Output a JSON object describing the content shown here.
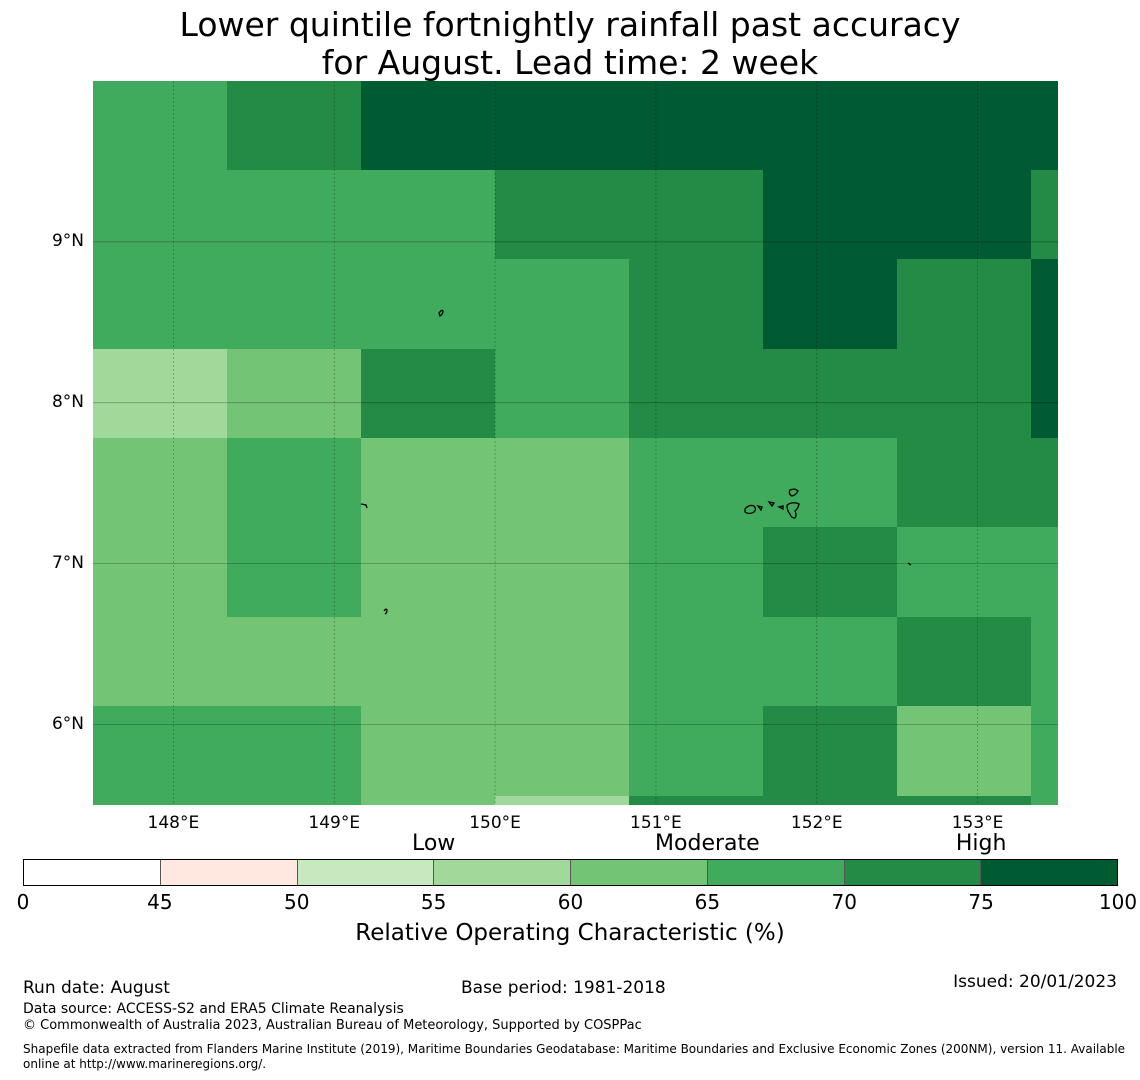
{
  "title": {
    "line1": "Lower quintile fortnightly rainfall past accuracy",
    "line2": "for August. Lead time: 2 week"
  },
  "map": {
    "x_ticks": [
      {
        "lon": 148,
        "label": "148°E"
      },
      {
        "lon": 149,
        "label": "149°E"
      },
      {
        "lon": 150,
        "label": "150°E"
      },
      {
        "lon": 151,
        "label": "151°E"
      },
      {
        "lon": 152,
        "label": "152°E"
      },
      {
        "lon": 153,
        "label": "153°E"
      }
    ],
    "y_ticks": [
      {
        "lat": 9,
        "label": "9°N"
      },
      {
        "lat": 8,
        "label": "8°N"
      },
      {
        "lat": 7,
        "label": "7°N"
      },
      {
        "lat": 6,
        "label": "6°N"
      }
    ],
    "lon_range": [
      147.5,
      153.5
    ],
    "lat_range": [
      5.5,
      10.0
    ],
    "grid": true,
    "value_colors": {
      "60": "#a1d99b",
      "65": "#74c476",
      "70": "#41ab5d",
      "75": "#238b45",
      "100": "#005a32"
    },
    "grid_value_class": [
      [
        70,
        75,
        100,
        100,
        100,
        100,
        100,
        100
      ],
      [
        70,
        70,
        70,
        75,
        75,
        100,
        100,
        75
      ],
      [
        70,
        70,
        70,
        70,
        75,
        100,
        75,
        100
      ],
      [
        60,
        65,
        75,
        70,
        75,
        75,
        75,
        100
      ],
      [
        65,
        70,
        65,
        65,
        70,
        70,
        75,
        75
      ],
      [
        65,
        70,
        65,
        65,
        70,
        75,
        70,
        70
      ],
      [
        65,
        65,
        65,
        65,
        70,
        70,
        75,
        70
      ],
      [
        70,
        70,
        65,
        65,
        70,
        75,
        65,
        70
      ]
    ],
    "grid_bottom_row_partial": [
      70,
      70,
      65,
      60,
      75,
      75,
      75,
      70
    ]
  },
  "categories": [
    {
      "label": "Low",
      "position": 55
    },
    {
      "label": "Moderate",
      "position": 65
    },
    {
      "label": "High",
      "position": 75
    }
  ],
  "colorbar": {
    "ticks": [
      "0",
      "45",
      "50",
      "55",
      "60",
      "65",
      "70",
      "75",
      "100"
    ],
    "colors": [
      "#ffffff",
      "#fee8df",
      "#c7e9c0",
      "#a1d99b",
      "#74c476",
      "#41ab5d",
      "#238b45",
      "#005a32"
    ],
    "label": "Relative Operating Characteristic (%)"
  },
  "footer": {
    "run_date": "Run date: August",
    "base_period": "Base period: 1981-2018",
    "issued": "Issued: 20/01/2023",
    "data_source": "Data source: ACCESS-S2 and ERA5 Climate Reanalysis",
    "copyright": "© Commonwealth of Australia 2023, Australian Bureau of Meteorology, Supported by COSPPac",
    "shapefile": "Shapefile data extracted from Flanders Marine Institute (2019), Maritime Boundaries Geodatabase: Maritime Boundaries and Exclusive Economic Zones (200NM), version 11. Available online at http://www.marineregions.org/."
  }
}
